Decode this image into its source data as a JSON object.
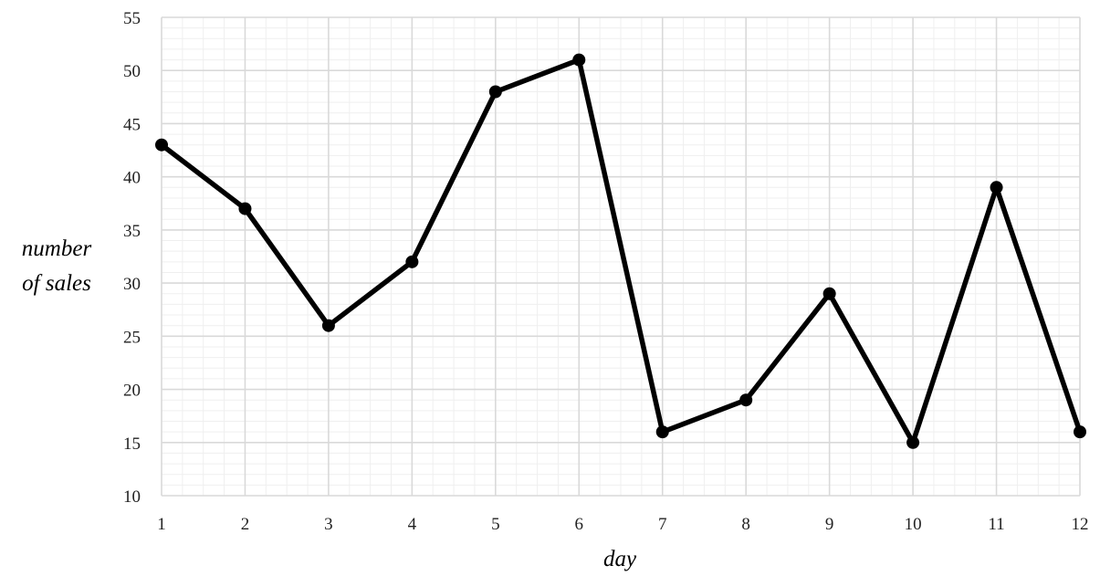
{
  "chart_data": {
    "type": "line",
    "title": "",
    "xlabel": "day",
    "ylabel_lines": [
      "number",
      "of sales"
    ],
    "x": [
      1,
      2,
      3,
      4,
      5,
      6,
      7,
      8,
      9,
      10,
      11,
      12
    ],
    "series": [
      {
        "values": [
          43,
          37,
          26,
          32,
          48,
          51,
          16,
          19,
          29,
          15,
          39,
          16
        ]
      }
    ],
    "xlim": [
      1,
      12
    ],
    "ylim": [
      10,
      55
    ],
    "y_ticks": [
      10,
      15,
      20,
      25,
      30,
      35,
      40,
      45,
      50,
      55
    ],
    "y_minor_step": 1,
    "x_minor_divisions": 4,
    "grid": true,
    "legend": "none",
    "colors": {
      "line": "#000000",
      "marker": "#000000",
      "major_grid": "#d9d9d9",
      "minor_grid": "#efefef"
    }
  }
}
